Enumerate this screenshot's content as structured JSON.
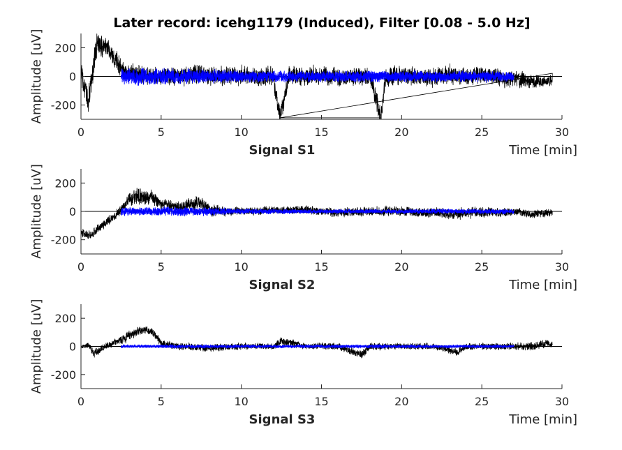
{
  "figure": {
    "title": "Later record: icehg1179 (Induced), Filter [0.08 - 5.0 Hz]"
  },
  "colors": {
    "raw_signal": "#000000",
    "segment_signal": "#0000ff",
    "axes": "#262626"
  },
  "chart_data": [
    {
      "type": "line",
      "title": "Signal S1",
      "xlabel": "Time [min]",
      "ylabel": "Amplitude [uV]",
      "xlim": [
        0,
        30
      ],
      "ylim": [
        -300,
        300
      ],
      "xticks": [
        0,
        5,
        10,
        15,
        20,
        25,
        30
      ],
      "yticks": [
        -200,
        0,
        200
      ],
      "grid": false,
      "series": [
        {
          "color": "#000000",
          "x": [
            0,
            0.5,
            1,
            1.5,
            2,
            2.5,
            3,
            4,
            5,
            6,
            7,
            8,
            9,
            10,
            11,
            12,
            12.4,
            13,
            14,
            15,
            16,
            17,
            18,
            18.7,
            19,
            20,
            21,
            22,
            23,
            24,
            25,
            26,
            27,
            28,
            29,
            29.4
          ],
          "y": [
            20,
            -150,
            240,
            200,
            150,
            60,
            30,
            10,
            0,
            -10,
            20,
            0,
            0,
            10,
            -10,
            0,
            -290,
            10,
            0,
            10,
            0,
            -10,
            10,
            -290,
            0,
            10,
            0,
            -10,
            10,
            0,
            10,
            -10,
            -20,
            -30,
            -40,
            -20
          ],
          "amplitude": [
            100,
            110,
            90,
            80,
            75,
            70,
            65,
            70,
            70,
            70,
            75,
            70,
            70,
            70,
            70,
            70,
            70,
            70,
            70,
            70,
            70,
            70,
            70,
            70,
            70,
            70,
            70,
            70,
            70,
            70,
            70,
            70,
            60,
            55,
            55,
            55
          ]
        },
        {
          "color": "#0000ff",
          "x": [
            2.5,
            4,
            6,
            8,
            10,
            12,
            14,
            16,
            18,
            20,
            22,
            24,
            26,
            27
          ],
          "y": [
            0,
            0,
            0,
            0,
            0,
            0,
            0,
            0,
            0,
            0,
            0,
            0,
            0,
            0
          ],
          "amplitude": [
            55,
            60,
            55,
            50,
            45,
            40,
            40,
            40,
            45,
            40,
            40,
            40,
            40,
            35
          ]
        }
      ]
    },
    {
      "type": "line",
      "title": "Signal S2",
      "xlabel": "Time [min]",
      "ylabel": "Amplitude [uV]",
      "xlim": [
        0,
        30
      ],
      "ylim": [
        -300,
        300
      ],
      "xticks": [
        0,
        5,
        10,
        15,
        20,
        25,
        30
      ],
      "yticks": [
        -200,
        0,
        200
      ],
      "grid": false,
      "series": [
        {
          "color": "#000000",
          "x": [
            0,
            0.5,
            1,
            1.5,
            2,
            2.5,
            3,
            3.5,
            4,
            4.5,
            5,
            6,
            7,
            7.5,
            8,
            9,
            10,
            12,
            14,
            15,
            16,
            18,
            20,
            22,
            23,
            24,
            25,
            26,
            27,
            28,
            29,
            29.4
          ],
          "y": [
            -150,
            -170,
            -130,
            -80,
            -40,
            10,
            80,
            110,
            100,
            90,
            60,
            30,
            50,
            60,
            10,
            0,
            0,
            10,
            10,
            0,
            -10,
            0,
            0,
            -10,
            -20,
            -10,
            0,
            -10,
            0,
            -20,
            -10,
            -10
          ],
          "amplitude": [
            40,
            35,
            35,
            35,
            35,
            40,
            55,
            60,
            55,
            50,
            45,
            45,
            50,
            60,
            45,
            35,
            30,
            30,
            30,
            30,
            35,
            35,
            35,
            40,
            45,
            40,
            40,
            35,
            30,
            30,
            30,
            30
          ]
        },
        {
          "color": "#0000ff",
          "x": [
            2.5,
            4,
            6,
            8,
            10,
            12,
            14,
            16,
            18,
            20,
            22,
            24,
            26,
            27
          ],
          "y": [
            0,
            0,
            0,
            0,
            0,
            0,
            0,
            0,
            0,
            0,
            0,
            0,
            0,
            0
          ],
          "amplitude": [
            30,
            30,
            35,
            30,
            20,
            18,
            15,
            15,
            15,
            15,
            18,
            18,
            18,
            15
          ]
        }
      ]
    },
    {
      "type": "line",
      "title": "Signal S3",
      "xlabel": "Time [min]",
      "ylabel": "Amplitude [uV]",
      "xlim": [
        0,
        30
      ],
      "ylim": [
        -300,
        300
      ],
      "xticks": [
        0,
        5,
        10,
        15,
        20,
        25,
        30
      ],
      "yticks": [
        -200,
        0,
        200
      ],
      "grid": false,
      "series": [
        {
          "color": "#000000",
          "x": [
            0,
            0.5,
            0.8,
            1,
            1.5,
            2,
            2.5,
            3,
            3.5,
            4,
            4.5,
            5,
            6,
            8,
            10,
            12,
            12.5,
            14,
            16,
            17.5,
            18,
            20,
            22,
            23.5,
            24,
            26,
            28,
            29,
            29.4
          ],
          "y": [
            0,
            10,
            -50,
            -40,
            0,
            20,
            40,
            80,
            110,
            120,
            100,
            20,
            0,
            -10,
            0,
            0,
            40,
            0,
            0,
            -60,
            0,
            0,
            0,
            -40,
            0,
            0,
            0,
            20,
            10
          ],
          "amplitude": [
            15,
            20,
            35,
            30,
            25,
            30,
            35,
            40,
            35,
            30,
            30,
            30,
            25,
            30,
            25,
            25,
            30,
            25,
            25,
            30,
            30,
            25,
            25,
            30,
            25,
            25,
            30,
            30,
            25
          ]
        },
        {
          "color": "#0000ff",
          "x": [
            2.5,
            4,
            6,
            8,
            10,
            12,
            14,
            16,
            18,
            20,
            22,
            24,
            26,
            27
          ],
          "y": [
            0,
            0,
            0,
            0,
            0,
            0,
            0,
            0,
            0,
            0,
            0,
            0,
            0,
            0
          ],
          "amplitude": [
            12,
            12,
            14,
            12,
            12,
            12,
            12,
            12,
            14,
            12,
            12,
            12,
            12,
            10
          ]
        }
      ]
    }
  ]
}
